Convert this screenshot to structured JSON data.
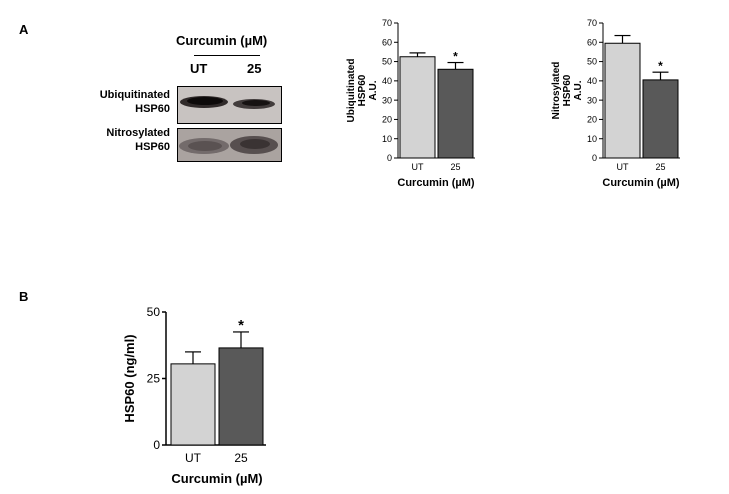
{
  "panels": {
    "a_label": "A",
    "b_label": "B"
  },
  "blot": {
    "header": "Curcumin (µM)",
    "lanes": [
      "UT",
      "25"
    ],
    "rows": [
      {
        "label_lines": [
          "Ubiquitinated",
          "HSP60"
        ]
      },
      {
        "label_lines": [
          "Nitrosylated",
          "HSP60"
        ]
      }
    ]
  },
  "chart_data": [
    {
      "type": "bar",
      "categories": [
        "UT",
        "25"
      ],
      "values": [
        52.5,
        46
      ],
      "errors": [
        2,
        3.5
      ],
      "significance": [
        "",
        "*"
      ],
      "ylabel_lines": [
        "Ubiquitinated",
        "HSP60",
        "A.U."
      ],
      "xlabel": "Curcumin (µM)",
      "ylim": [
        0,
        70
      ],
      "yticks": [
        0,
        10,
        20,
        30,
        40,
        50,
        60,
        70
      ],
      "colors": [
        "#d3d3d3",
        "#595959"
      ]
    },
    {
      "type": "bar",
      "categories": [
        "UT",
        "25"
      ],
      "values": [
        59.5,
        40.5
      ],
      "errors": [
        4,
        4
      ],
      "significance": [
        "",
        "*"
      ],
      "ylabel_lines": [
        "Nitrosylated",
        "HSP60",
        "A.U."
      ],
      "xlabel": "Curcumin (µM)",
      "ylim": [
        0,
        70
      ],
      "yticks": [
        0,
        10,
        20,
        30,
        40,
        50,
        60,
        70
      ],
      "colors": [
        "#d3d3d3",
        "#595959"
      ]
    },
    {
      "type": "bar",
      "categories": [
        "UT",
        "25"
      ],
      "values": [
        30.5,
        36.5
      ],
      "errors": [
        4.5,
        6
      ],
      "significance": [
        "",
        "*"
      ],
      "ylabel_lines": [
        "HSP60 (ng/ml)"
      ],
      "xlabel": "Curcumin (µM)",
      "ylim": [
        0,
        50
      ],
      "yticks": [
        0,
        25,
        50
      ],
      "colors": [
        "#d3d3d3",
        "#595959"
      ]
    }
  ]
}
